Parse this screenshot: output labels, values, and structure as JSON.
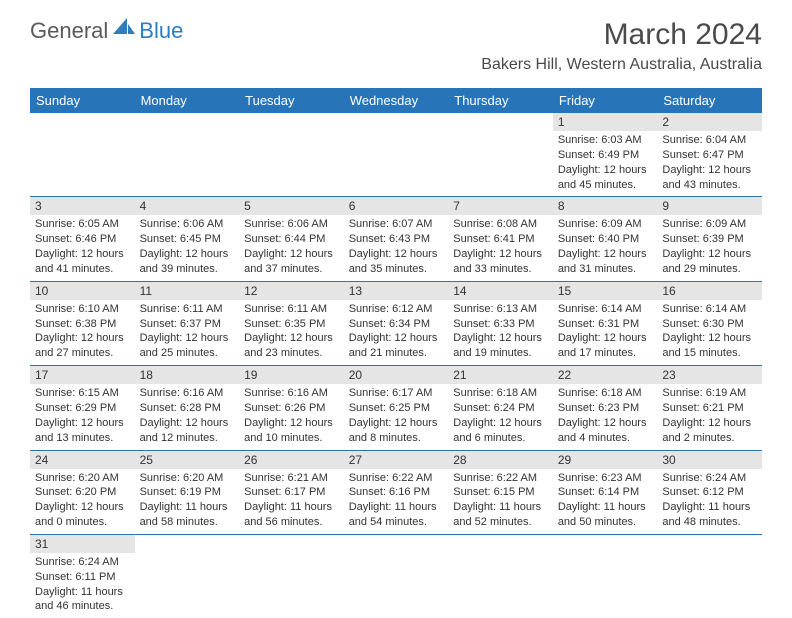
{
  "logo": {
    "part1": "General",
    "part2": "Blue"
  },
  "title": "March 2024",
  "location": "Bakers Hill, Western Australia, Australia",
  "colors": {
    "header_bg": "#2874b8",
    "header_text": "#ffffff",
    "daynum_bg": "#e5e5e5",
    "border": "#2874b8",
    "title_color": "#4a4a4a"
  },
  "weekdays": [
    "Sunday",
    "Monday",
    "Tuesday",
    "Wednesday",
    "Thursday",
    "Friday",
    "Saturday"
  ],
  "weeks": [
    [
      null,
      null,
      null,
      null,
      null,
      {
        "n": "1",
        "sunrise": "Sunrise: 6:03 AM",
        "sunset": "Sunset: 6:49 PM",
        "daylight": "Daylight: 12 hours and 45 minutes."
      },
      {
        "n": "2",
        "sunrise": "Sunrise: 6:04 AM",
        "sunset": "Sunset: 6:47 PM",
        "daylight": "Daylight: 12 hours and 43 minutes."
      }
    ],
    [
      {
        "n": "3",
        "sunrise": "Sunrise: 6:05 AM",
        "sunset": "Sunset: 6:46 PM",
        "daylight": "Daylight: 12 hours and 41 minutes."
      },
      {
        "n": "4",
        "sunrise": "Sunrise: 6:06 AM",
        "sunset": "Sunset: 6:45 PM",
        "daylight": "Daylight: 12 hours and 39 minutes."
      },
      {
        "n": "5",
        "sunrise": "Sunrise: 6:06 AM",
        "sunset": "Sunset: 6:44 PM",
        "daylight": "Daylight: 12 hours and 37 minutes."
      },
      {
        "n": "6",
        "sunrise": "Sunrise: 6:07 AM",
        "sunset": "Sunset: 6:43 PM",
        "daylight": "Daylight: 12 hours and 35 minutes."
      },
      {
        "n": "7",
        "sunrise": "Sunrise: 6:08 AM",
        "sunset": "Sunset: 6:41 PM",
        "daylight": "Daylight: 12 hours and 33 minutes."
      },
      {
        "n": "8",
        "sunrise": "Sunrise: 6:09 AM",
        "sunset": "Sunset: 6:40 PM",
        "daylight": "Daylight: 12 hours and 31 minutes."
      },
      {
        "n": "9",
        "sunrise": "Sunrise: 6:09 AM",
        "sunset": "Sunset: 6:39 PM",
        "daylight": "Daylight: 12 hours and 29 minutes."
      }
    ],
    [
      {
        "n": "10",
        "sunrise": "Sunrise: 6:10 AM",
        "sunset": "Sunset: 6:38 PM",
        "daylight": "Daylight: 12 hours and 27 minutes."
      },
      {
        "n": "11",
        "sunrise": "Sunrise: 6:11 AM",
        "sunset": "Sunset: 6:37 PM",
        "daylight": "Daylight: 12 hours and 25 minutes."
      },
      {
        "n": "12",
        "sunrise": "Sunrise: 6:11 AM",
        "sunset": "Sunset: 6:35 PM",
        "daylight": "Daylight: 12 hours and 23 minutes."
      },
      {
        "n": "13",
        "sunrise": "Sunrise: 6:12 AM",
        "sunset": "Sunset: 6:34 PM",
        "daylight": "Daylight: 12 hours and 21 minutes."
      },
      {
        "n": "14",
        "sunrise": "Sunrise: 6:13 AM",
        "sunset": "Sunset: 6:33 PM",
        "daylight": "Daylight: 12 hours and 19 minutes."
      },
      {
        "n": "15",
        "sunrise": "Sunrise: 6:14 AM",
        "sunset": "Sunset: 6:31 PM",
        "daylight": "Daylight: 12 hours and 17 minutes."
      },
      {
        "n": "16",
        "sunrise": "Sunrise: 6:14 AM",
        "sunset": "Sunset: 6:30 PM",
        "daylight": "Daylight: 12 hours and 15 minutes."
      }
    ],
    [
      {
        "n": "17",
        "sunrise": "Sunrise: 6:15 AM",
        "sunset": "Sunset: 6:29 PM",
        "daylight": "Daylight: 12 hours and 13 minutes."
      },
      {
        "n": "18",
        "sunrise": "Sunrise: 6:16 AM",
        "sunset": "Sunset: 6:28 PM",
        "daylight": "Daylight: 12 hours and 12 minutes."
      },
      {
        "n": "19",
        "sunrise": "Sunrise: 6:16 AM",
        "sunset": "Sunset: 6:26 PM",
        "daylight": "Daylight: 12 hours and 10 minutes."
      },
      {
        "n": "20",
        "sunrise": "Sunrise: 6:17 AM",
        "sunset": "Sunset: 6:25 PM",
        "daylight": "Daylight: 12 hours and 8 minutes."
      },
      {
        "n": "21",
        "sunrise": "Sunrise: 6:18 AM",
        "sunset": "Sunset: 6:24 PM",
        "daylight": "Daylight: 12 hours and 6 minutes."
      },
      {
        "n": "22",
        "sunrise": "Sunrise: 6:18 AM",
        "sunset": "Sunset: 6:23 PM",
        "daylight": "Daylight: 12 hours and 4 minutes."
      },
      {
        "n": "23",
        "sunrise": "Sunrise: 6:19 AM",
        "sunset": "Sunset: 6:21 PM",
        "daylight": "Daylight: 12 hours and 2 minutes."
      }
    ],
    [
      {
        "n": "24",
        "sunrise": "Sunrise: 6:20 AM",
        "sunset": "Sunset: 6:20 PM",
        "daylight": "Daylight: 12 hours and 0 minutes."
      },
      {
        "n": "25",
        "sunrise": "Sunrise: 6:20 AM",
        "sunset": "Sunset: 6:19 PM",
        "daylight": "Daylight: 11 hours and 58 minutes."
      },
      {
        "n": "26",
        "sunrise": "Sunrise: 6:21 AM",
        "sunset": "Sunset: 6:17 PM",
        "daylight": "Daylight: 11 hours and 56 minutes."
      },
      {
        "n": "27",
        "sunrise": "Sunrise: 6:22 AM",
        "sunset": "Sunset: 6:16 PM",
        "daylight": "Daylight: 11 hours and 54 minutes."
      },
      {
        "n": "28",
        "sunrise": "Sunrise: 6:22 AM",
        "sunset": "Sunset: 6:15 PM",
        "daylight": "Daylight: 11 hours and 52 minutes."
      },
      {
        "n": "29",
        "sunrise": "Sunrise: 6:23 AM",
        "sunset": "Sunset: 6:14 PM",
        "daylight": "Daylight: 11 hours and 50 minutes."
      },
      {
        "n": "30",
        "sunrise": "Sunrise: 6:24 AM",
        "sunset": "Sunset: 6:12 PM",
        "daylight": "Daylight: 11 hours and 48 minutes."
      }
    ],
    [
      {
        "n": "31",
        "sunrise": "Sunrise: 6:24 AM",
        "sunset": "Sunset: 6:11 PM",
        "daylight": "Daylight: 11 hours and 46 minutes."
      },
      null,
      null,
      null,
      null,
      null,
      null
    ]
  ]
}
